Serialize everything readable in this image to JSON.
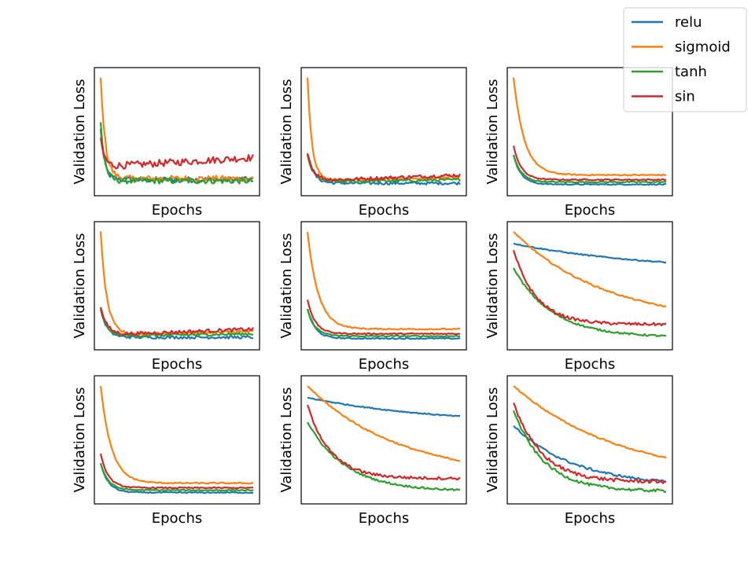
{
  "chart_data": {
    "type": "line",
    "grid": false,
    "legend_placement": "top-right",
    "xlabel": "Epochs",
    "ylabel": "Validation Loss",
    "series_names": [
      "relu",
      "sigmoid",
      "tanh",
      "sin"
    ],
    "colors": {
      "relu": "#1f77b4",
      "sigmoid": "#ff7f0e",
      "tanh": "#2ca02c",
      "sin": "#d62728"
    },
    "epochs": 100,
    "ylim": [
      0,
      1
    ],
    "subplots": [
      {
        "id": "r1c1",
        "relu": {
          "start": 0.52,
          "end": 0.09,
          "tau": 2.5,
          "noise": 0.025,
          "late_slope": 0.0
        },
        "sigmoid": {
          "start": 0.96,
          "end": 0.1,
          "tau": 3,
          "noise": 0.025,
          "late_slope": 0.0
        },
        "tanh": {
          "start": 0.58,
          "end": 0.08,
          "tau": 2.5,
          "noise": 0.025,
          "late_slope": 0.0
        },
        "sin": {
          "start": 0.44,
          "end": 0.2,
          "tau": 2.5,
          "noise": 0.03,
          "late_slope": 0.08
        }
      },
      {
        "id": "r1c2",
        "relu": {
          "start": 0.3,
          "end": 0.06,
          "tau": 4,
          "noise": 0.012,
          "late_slope": 0.0
        },
        "sigmoid": {
          "start": 0.96,
          "end": 0.08,
          "tau": 3,
          "noise": 0.012,
          "late_slope": 0.03
        },
        "tanh": {
          "start": 0.3,
          "end": 0.07,
          "tau": 4,
          "noise": 0.012,
          "late_slope": 0.02
        },
        "sin": {
          "start": 0.32,
          "end": 0.08,
          "tau": 4,
          "noise": 0.015,
          "late_slope": 0.05
        }
      },
      {
        "id": "r1c3",
        "relu": {
          "start": 0.3,
          "end": 0.05,
          "tau": 5,
          "noise": 0.005,
          "late_slope": 0.0
        },
        "sigmoid": {
          "start": 0.96,
          "end": 0.13,
          "tau": 7,
          "noise": 0.005,
          "late_slope": 0.0
        },
        "tanh": {
          "start": 0.3,
          "end": 0.07,
          "tau": 5,
          "noise": 0.005,
          "late_slope": 0.0
        },
        "sin": {
          "start": 0.38,
          "end": 0.09,
          "tau": 5,
          "noise": 0.005,
          "late_slope": 0.0
        }
      },
      {
        "id": "r2c1",
        "relu": {
          "start": 0.3,
          "end": 0.06,
          "tau": 4,
          "noise": 0.012,
          "late_slope": 0.0
        },
        "sigmoid": {
          "start": 0.96,
          "end": 0.08,
          "tau": 4,
          "noise": 0.012,
          "late_slope": 0.03
        },
        "tanh": {
          "start": 0.3,
          "end": 0.07,
          "tau": 4,
          "noise": 0.012,
          "late_slope": 0.02
        },
        "sin": {
          "start": 0.32,
          "end": 0.08,
          "tau": 4,
          "noise": 0.015,
          "late_slope": 0.05
        }
      },
      {
        "id": "r2c2",
        "relu": {
          "start": 0.3,
          "end": 0.05,
          "tau": 5,
          "noise": 0.005,
          "late_slope": 0.0
        },
        "sigmoid": {
          "start": 0.96,
          "end": 0.13,
          "tau": 7,
          "noise": 0.005,
          "late_slope": 0.0
        },
        "tanh": {
          "start": 0.3,
          "end": 0.07,
          "tau": 5,
          "noise": 0.005,
          "late_slope": 0.0
        },
        "sin": {
          "start": 0.38,
          "end": 0.09,
          "tau": 5,
          "noise": 0.005,
          "late_slope": 0.0
        }
      },
      {
        "id": "r2c3",
        "relu": {
          "start": 0.86,
          "end": 0.62,
          "tau": 90,
          "noise": 0.005,
          "late_slope": 0.0
        },
        "sigmoid": {
          "start": 0.96,
          "end": 0.17,
          "tau": 60,
          "noise": 0.006,
          "late_slope": 0.0
        },
        "tanh": {
          "start": 0.65,
          "end": 0.06,
          "tau": 25,
          "noise": 0.008,
          "late_slope": 0.0
        },
        "sin": {
          "start": 0.8,
          "end": 0.17,
          "tau": 15,
          "noise": 0.012,
          "late_slope": 0.0
        }
      },
      {
        "id": "r3c1",
        "relu": {
          "start": 0.3,
          "end": 0.05,
          "tau": 5,
          "noise": 0.005,
          "late_slope": 0.0
        },
        "sigmoid": {
          "start": 0.96,
          "end": 0.13,
          "tau": 7,
          "noise": 0.005,
          "late_slope": 0.0
        },
        "tanh": {
          "start": 0.3,
          "end": 0.07,
          "tau": 5,
          "noise": 0.005,
          "late_slope": 0.0
        },
        "sin": {
          "start": 0.38,
          "end": 0.09,
          "tau": 5,
          "noise": 0.005,
          "late_slope": 0.0
        }
      },
      {
        "id": "r3c2",
        "relu": {
          "start": 0.86,
          "end": 0.62,
          "tau": 90,
          "noise": 0.005,
          "late_slope": 0.0
        },
        "sigmoid": {
          "start": 0.96,
          "end": 0.17,
          "tau": 60,
          "noise": 0.006,
          "late_slope": 0.0
        },
        "tanh": {
          "start": 0.65,
          "end": 0.06,
          "tau": 25,
          "noise": 0.008,
          "late_slope": 0.0
        },
        "sin": {
          "start": 0.8,
          "end": 0.17,
          "tau": 15,
          "noise": 0.012,
          "late_slope": 0.0
        }
      },
      {
        "id": "r3c3",
        "relu": {
          "start": 0.62,
          "end": 0.1,
          "tau": 40,
          "noise": 0.01,
          "late_slope": 0.0
        },
        "sigmoid": {
          "start": 0.96,
          "end": 0.15,
          "tau": 70,
          "noise": 0.006,
          "late_slope": 0.0
        },
        "tanh": {
          "start": 0.75,
          "end": 0.06,
          "tau": 20,
          "noise": 0.012,
          "late_slope": 0.0
        },
        "sin": {
          "start": 0.82,
          "end": 0.14,
          "tau": 18,
          "noise": 0.015,
          "late_slope": 0.0
        }
      }
    ]
  }
}
